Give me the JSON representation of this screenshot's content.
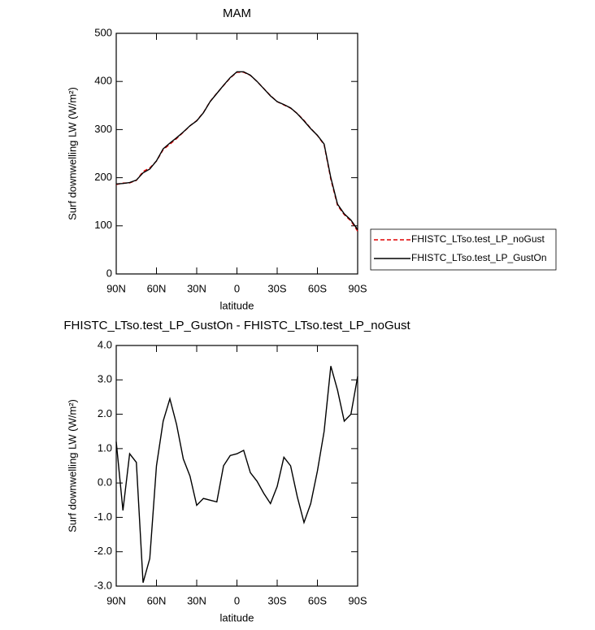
{
  "chart_data": [
    {
      "type": "line",
      "title": "MAM",
      "x_label": "latitude",
      "y_label": "Surf downwelling LW (W/m²)",
      "x": [
        90,
        85,
        80,
        75,
        70,
        65,
        60,
        55,
        50,
        45,
        40,
        35,
        30,
        25,
        20,
        15,
        10,
        5,
        0,
        -5,
        -10,
        -15,
        -20,
        -25,
        -30,
        -35,
        -40,
        -45,
        -50,
        -55,
        -60,
        -65,
        -70,
        -75,
        -80,
        -85,
        -90
      ],
      "series": [
        {
          "name": "FHISTC_LTso.test_LP_noGust",
          "color": "#e00000",
          "linestyle": "dashed",
          "values": [
            185.8,
            188.8,
            189.15,
            194.4,
            212.9,
            220.2,
            234.5,
            258.2,
            269.55,
            281.3,
            294.3,
            307.8,
            318.65,
            335.45,
            358.5,
            375.55,
            391.5,
            407.2,
            419.15,
            419.05,
            412.7,
            399.95,
            385.3,
            370.6,
            358.1,
            351.25,
            344.5,
            333.4,
            319.15,
            302.6,
            287.65,
            268.5,
            196.6,
            142.3,
            123.2,
            110,
            88.9
          ]
        },
        {
          "name": "FHISTC_LTso.test_LP_GustOn",
          "color": "#000000",
          "linestyle": "solid",
          "values": [
            187,
            188,
            190,
            195,
            210,
            218,
            235,
            260,
            272,
            283,
            295,
            308,
            318,
            335,
            358,
            375,
            392,
            408,
            420,
            420,
            413,
            400,
            385,
            370,
            358,
            352,
            345,
            333,
            318,
            302,
            288,
            270,
            200,
            145,
            125,
            112,
            92
          ]
        }
      ],
      "xlim": [
        90,
        -90
      ],
      "xticks": [
        {
          "value": 90,
          "label": "90N"
        },
        {
          "value": 60,
          "label": "60N"
        },
        {
          "value": 30,
          "label": "30N"
        },
        0,
        {
          "value": -30,
          "label": "30S"
        },
        {
          "value": -60,
          "label": "60S"
        },
        {
          "value": -90,
          "label": "90S"
        }
      ],
      "ylim": [
        0,
        500
      ],
      "yticks": [
        0,
        100,
        200,
        300,
        400,
        500
      ],
      "legend": "right"
    },
    {
      "type": "line",
      "title": "FHISTC_LTso.test_LP_GustOn - FHISTC_LTso.test_LP_noGust",
      "x_label": "latitude",
      "y_label": "Surf downwelling LW (W/m²)",
      "x": [
        90,
        85,
        80,
        75,
        70,
        65,
        60,
        55,
        50,
        45,
        40,
        35,
        30,
        25,
        20,
        15,
        10,
        5,
        0,
        -5,
        -10,
        -15,
        -20,
        -25,
        -30,
        -35,
        -40,
        -45,
        -50,
        -55,
        -60,
        -65,
        -70,
        -75,
        -80,
        -85,
        -90
      ],
      "series": [
        {
          "color": "#000000",
          "linestyle": "solid",
          "values": [
            1.2,
            -0.8,
            0.85,
            0.6,
            -2.9,
            -2.2,
            0.5,
            1.8,
            2.45,
            1.7,
            0.7,
            0.2,
            -0.65,
            -0.45,
            -0.5,
            -0.55,
            0.5,
            0.8,
            0.85,
            0.95,
            0.3,
            0.05,
            -0.3,
            -0.6,
            -0.1,
            0.75,
            0.5,
            -0.4,
            -1.15,
            -0.6,
            0.35,
            1.5,
            3.4,
            2.7,
            1.8,
            2.0,
            3.1
          ]
        }
      ],
      "xlim": [
        90,
        -90
      ],
      "xticks": [
        {
          "value": 90,
          "label": "90N"
        },
        {
          "value": 60,
          "label": "60N"
        },
        {
          "value": 30,
          "label": "30N"
        },
        0,
        {
          "value": -30,
          "label": "30S"
        },
        {
          "value": -60,
          "label": "60S"
        },
        {
          "value": -90,
          "label": "90S"
        }
      ],
      "ylim": [
        -3,
        4
      ],
      "yticks": [
        {
          "value": -3,
          "label": "-3.0"
        },
        {
          "value": -2,
          "label": "-2.0"
        },
        {
          "value": -1,
          "label": "-1.0"
        },
        {
          "value": 0,
          "label": "0.0"
        },
        {
          "value": 1,
          "label": "1.0"
        },
        {
          "value": 2,
          "label": "2.0"
        },
        {
          "value": 3,
          "label": "3.0"
        },
        {
          "value": 4,
          "label": "4.0"
        }
      ]
    }
  ]
}
